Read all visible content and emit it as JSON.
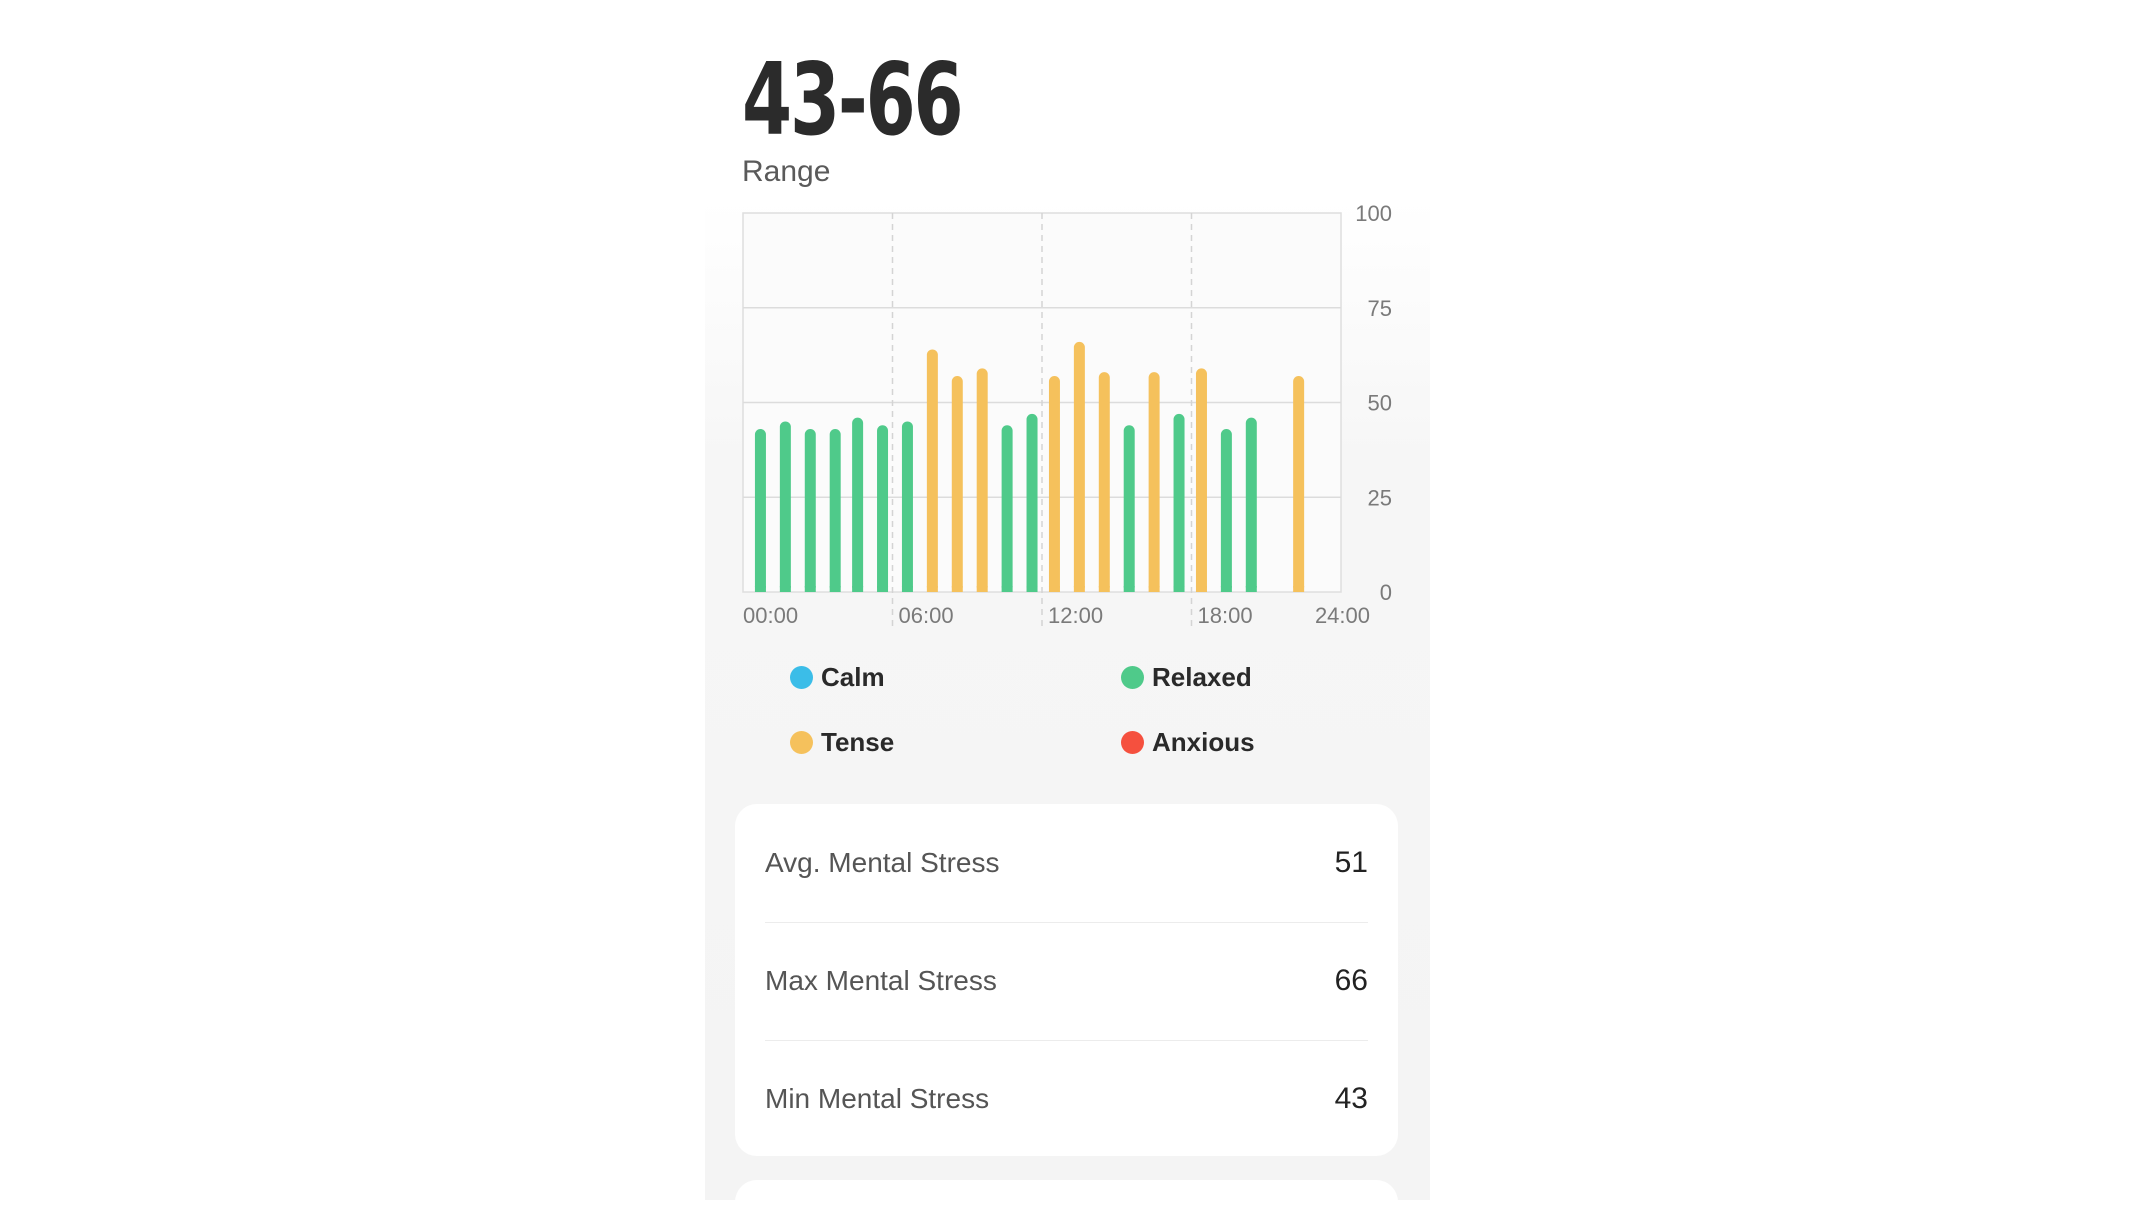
{
  "header": {
    "range_value": "43-66",
    "range_label": "Range"
  },
  "colors": {
    "calm": "#3bbde8",
    "relaxed": "#4fca8a",
    "tense": "#f5c15c",
    "anxious": "#f5503e"
  },
  "chart_data": {
    "type": "bar",
    "x_ticks": [
      "00:00",
      "06:00",
      "12:00",
      "18:00",
      "24:00"
    ],
    "y_ticks": [
      "0",
      "25",
      "50",
      "75",
      "100"
    ],
    "ylim": [
      0,
      100
    ],
    "xlim_hours": [
      0,
      24
    ],
    "grid": true,
    "bars": [
      {
        "hour": 0.7,
        "value": 43,
        "level": "relaxed"
      },
      {
        "hour": 1.7,
        "value": 45,
        "level": "relaxed"
      },
      {
        "hour": 2.7,
        "value": 43,
        "level": "relaxed"
      },
      {
        "hour": 3.7,
        "value": 43,
        "level": "relaxed"
      },
      {
        "hour": 4.6,
        "value": 46,
        "level": "relaxed"
      },
      {
        "hour": 5.6,
        "value": 44,
        "level": "relaxed"
      },
      {
        "hour": 6.6,
        "value": 45,
        "level": "relaxed"
      },
      {
        "hour": 7.6,
        "value": 64,
        "level": "tense"
      },
      {
        "hour": 8.6,
        "value": 57,
        "level": "tense"
      },
      {
        "hour": 9.6,
        "value": 59,
        "level": "tense"
      },
      {
        "hour": 10.6,
        "value": 44,
        "level": "relaxed"
      },
      {
        "hour": 11.6,
        "value": 47,
        "level": "relaxed"
      },
      {
        "hour": 12.5,
        "value": 57,
        "level": "tense"
      },
      {
        "hour": 13.5,
        "value": 66,
        "level": "tense"
      },
      {
        "hour": 14.5,
        "value": 58,
        "level": "tense"
      },
      {
        "hour": 15.5,
        "value": 44,
        "level": "relaxed"
      },
      {
        "hour": 16.5,
        "value": 58,
        "level": "tense"
      },
      {
        "hour": 17.5,
        "value": 47,
        "level": "relaxed"
      },
      {
        "hour": 18.4,
        "value": 59,
        "level": "tense"
      },
      {
        "hour": 19.4,
        "value": 43,
        "level": "relaxed"
      },
      {
        "hour": 20.4,
        "value": 46,
        "level": "relaxed"
      },
      {
        "hour": 22.3,
        "value": 57,
        "level": "tense"
      }
    ]
  },
  "legend": [
    {
      "key": "calm",
      "label": "Calm"
    },
    {
      "key": "relaxed",
      "label": "Relaxed"
    },
    {
      "key": "tense",
      "label": "Tense"
    },
    {
      "key": "anxious",
      "label": "Anxious"
    }
  ],
  "stats": {
    "avg": {
      "label": "Avg. Mental Stress",
      "value": "51"
    },
    "max": {
      "label": "Max Mental Stress",
      "value": "66"
    },
    "min": {
      "label": "Min Mental Stress",
      "value": "43"
    }
  }
}
